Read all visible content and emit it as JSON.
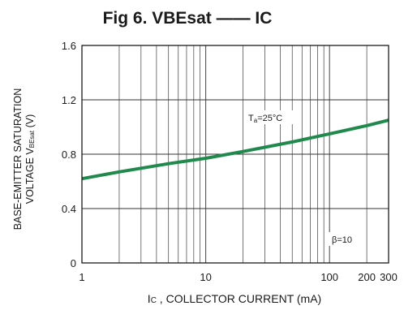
{
  "chart_data": {
    "type": "line",
    "title": "Fig 6. VBEsat —— IC",
    "xlabel": {
      "main": "I",
      "sub": "C",
      "rest": " , COLLECTOR CURRENT (mA)"
    },
    "ylabel_line1": "BASE-EMITTER SATURATION",
    "ylabel_line2": {
      "main": "VOLTAGE V",
      "sub": "BEsat",
      "rest": " (V)"
    },
    "xscale": "log",
    "xlim": [
      1,
      300
    ],
    "ylim": [
      0,
      1.6
    ],
    "x_tick_labels": [
      {
        "x": 1,
        "label": "1"
      },
      {
        "x": 10,
        "label": "10"
      },
      {
        "x": 100,
        "label": "100"
      },
      {
        "x": 200,
        "label": "200"
      },
      {
        "x": 300,
        "label": "300"
      }
    ],
    "y_tick_labels": [
      {
        "y": 0,
        "label": "0"
      },
      {
        "y": 0.4,
        "label": "0.4"
      },
      {
        "y": 0.8,
        "label": "0.8"
      },
      {
        "y": 1.2,
        "label": "1.2"
      },
      {
        "y": 1.6,
        "label": "1.6"
      }
    ],
    "grid": true,
    "annotations": {
      "temperature": {
        "main": "T",
        "sub": "a",
        "rest": "=25°C"
      },
      "beta": "β=10"
    },
    "series": [
      {
        "color": "#1f8a4c",
        "x": [
          1,
          2,
          5,
          10,
          20,
          50,
          100,
          200,
          300
        ],
        "y": [
          0.62,
          0.67,
          0.73,
          0.77,
          0.82,
          0.89,
          0.95,
          1.01,
          1.05
        ]
      }
    ]
  }
}
